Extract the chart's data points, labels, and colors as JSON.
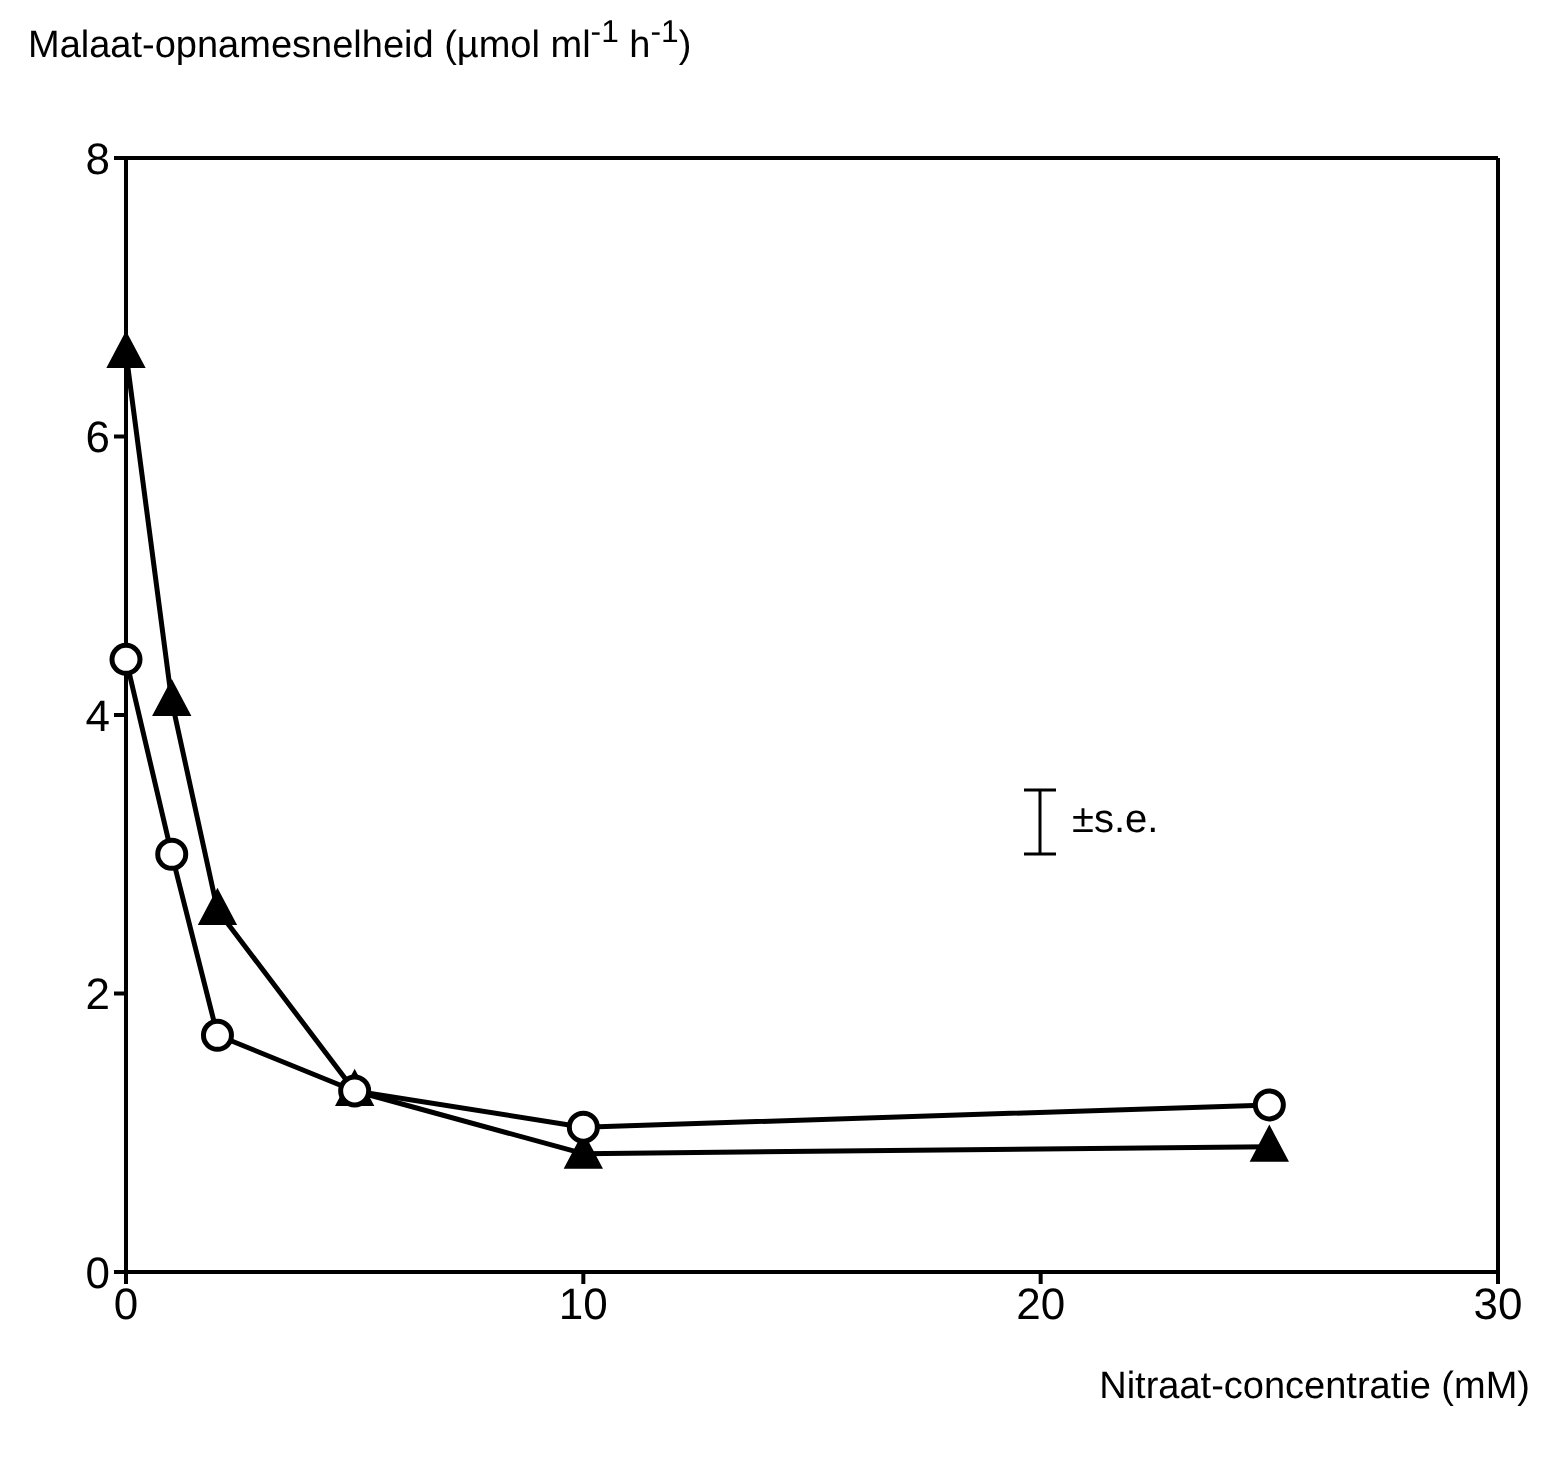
{
  "chart_data": {
    "type": "line",
    "ylabel": "Malaat-opnamesnelheid (µmol ml$^{-1}$ h$^{-1}$)",
    "xlabel": "Nitraat-concentratie (mM)",
    "x": [
      0,
      1,
      2,
      5,
      10,
      25
    ],
    "series": [
      {
        "color": "#000000",
        "marker": "triangle",
        "values": [
          6.6,
          4.1,
          2.6,
          1.3,
          0.85,
          0.9
        ]
      },
      {
        "color": "#000000",
        "marker": "circle",
        "values": [
          4.4,
          3.0,
          1.7,
          1.3,
          1.04,
          1.2
        ]
      }
    ],
    "xlim": [
      0,
      30
    ],
    "xticks": [
      0,
      10,
      20,
      30
    ],
    "ylim": [
      0,
      8
    ],
    "yticks": [
      0,
      2,
      4,
      6,
      8
    ],
    "annotations": [
      "±s.e."
    ],
    "grid": false,
    "legend": false,
    "line_style": "solid"
  }
}
